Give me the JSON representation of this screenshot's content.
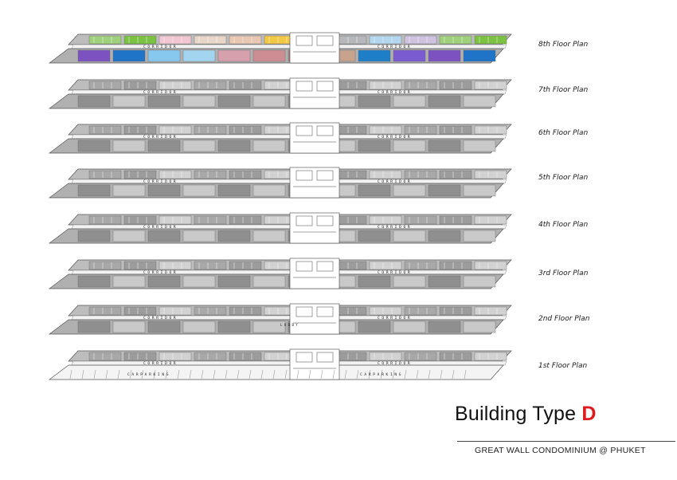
{
  "floors": [
    {
      "label": "8th Floor Plan",
      "corridor_left": "C O R R I D O R",
      "corridor_right": "C O R R I D O R",
      "colored": true
    },
    {
      "label": "7th Floor Plan",
      "corridor_left": "C O R R I D O R",
      "corridor_right": "C O R R I D O R"
    },
    {
      "label": "6th Floor Plan",
      "corridor_left": "C O R R I D O R",
      "corridor_right": "C O R R I D O R"
    },
    {
      "label": "5th Floor Plan",
      "corridor_left": "C O R R I D O R",
      "corridor_right": "C O R R I D O R"
    },
    {
      "label": "4th Floor Plan",
      "corridor_left": "C O R R I D O R",
      "corridor_right": "C O R R I D O R"
    },
    {
      "label": "3rd Floor Plan",
      "corridor_left": "C O R R I D O R",
      "corridor_right": "C O R R I D O R"
    },
    {
      "label": "2nd Floor Plan",
      "corridor_left": "C O R R I D O R",
      "corridor_right": "C O R R I D O R",
      "lobby": "L O B B Y"
    },
    {
      "label": "1st Floor Plan",
      "corridor_left": "C O R R I D O R",
      "corridor_right": "C O R R I D O R",
      "parking_left": "C A R   P A R K I N G",
      "parking_right": "C A R   P A R K I N G",
      "ground": true
    }
  ],
  "unit_colors_top": [
    "#9fd17c",
    "#7bc142",
    "#f2c6d3",
    "#e8d7c9",
    "#e9c7b3",
    "#f3c845",
    "#f0c850",
    "#b6b8bb",
    "#b3d7ee",
    "#cfc3e2"
  ],
  "unit_colors_bottom": [
    "#7c52c1",
    "#1f74c7",
    "#87c9ee",
    "#a4d5f0",
    "#d7a0ad",
    "#cc8e93",
    "#a78584",
    "#c7a38e",
    "#1e7fc8",
    "#7a5bd0"
  ],
  "title": {
    "main": "Building Type ",
    "letter": "D"
  },
  "subtitle": "GREAT WALL CONDOMINIUM @ PHUKET"
}
